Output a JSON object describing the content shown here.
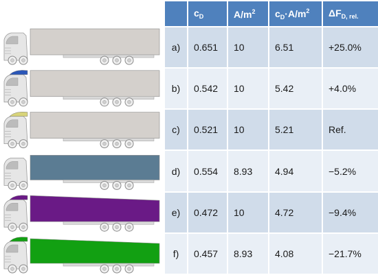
{
  "headers": {
    "c": "c",
    "d": "D",
    "area": "A/m",
    "area_exp": "2",
    "cda_c": "c",
    "cda_d": "D",
    "cda_mid": "·A/m",
    "cda_exp": "2",
    "delta": "ΔF",
    "delta_sub": "D, rel."
  },
  "rows": [
    {
      "label": "a)",
      "cd": "0.651",
      "area": "10",
      "cda": "6.51",
      "delta": "+25.0%",
      "color": "#d4d0cc"
    },
    {
      "label": "b)",
      "cd": "0.542",
      "area": "10",
      "cda": "5.42",
      "delta": "+4.0%",
      "color": "#d4d0cc"
    },
    {
      "label": "c)",
      "cd": "0.521",
      "area": "10",
      "cda": "5.21",
      "delta": "Ref.",
      "color": "#d4d0cc"
    },
    {
      "label": "d)",
      "cd": "0.554",
      "area": "8.93",
      "cda": "4.94",
      "delta": "−5.2%",
      "color": "#5b7c93"
    },
    {
      "label": "e)",
      "cd": "0.472",
      "area": "10",
      "cda": "4.72",
      "delta": "−9.4%",
      "color": "#6a1a86"
    },
    {
      "label": "f)",
      "cd": "0.457",
      "area": "8.93",
      "cda": "4.08",
      "delta": "−21.7%",
      "color": "#12a012"
    }
  ]
}
